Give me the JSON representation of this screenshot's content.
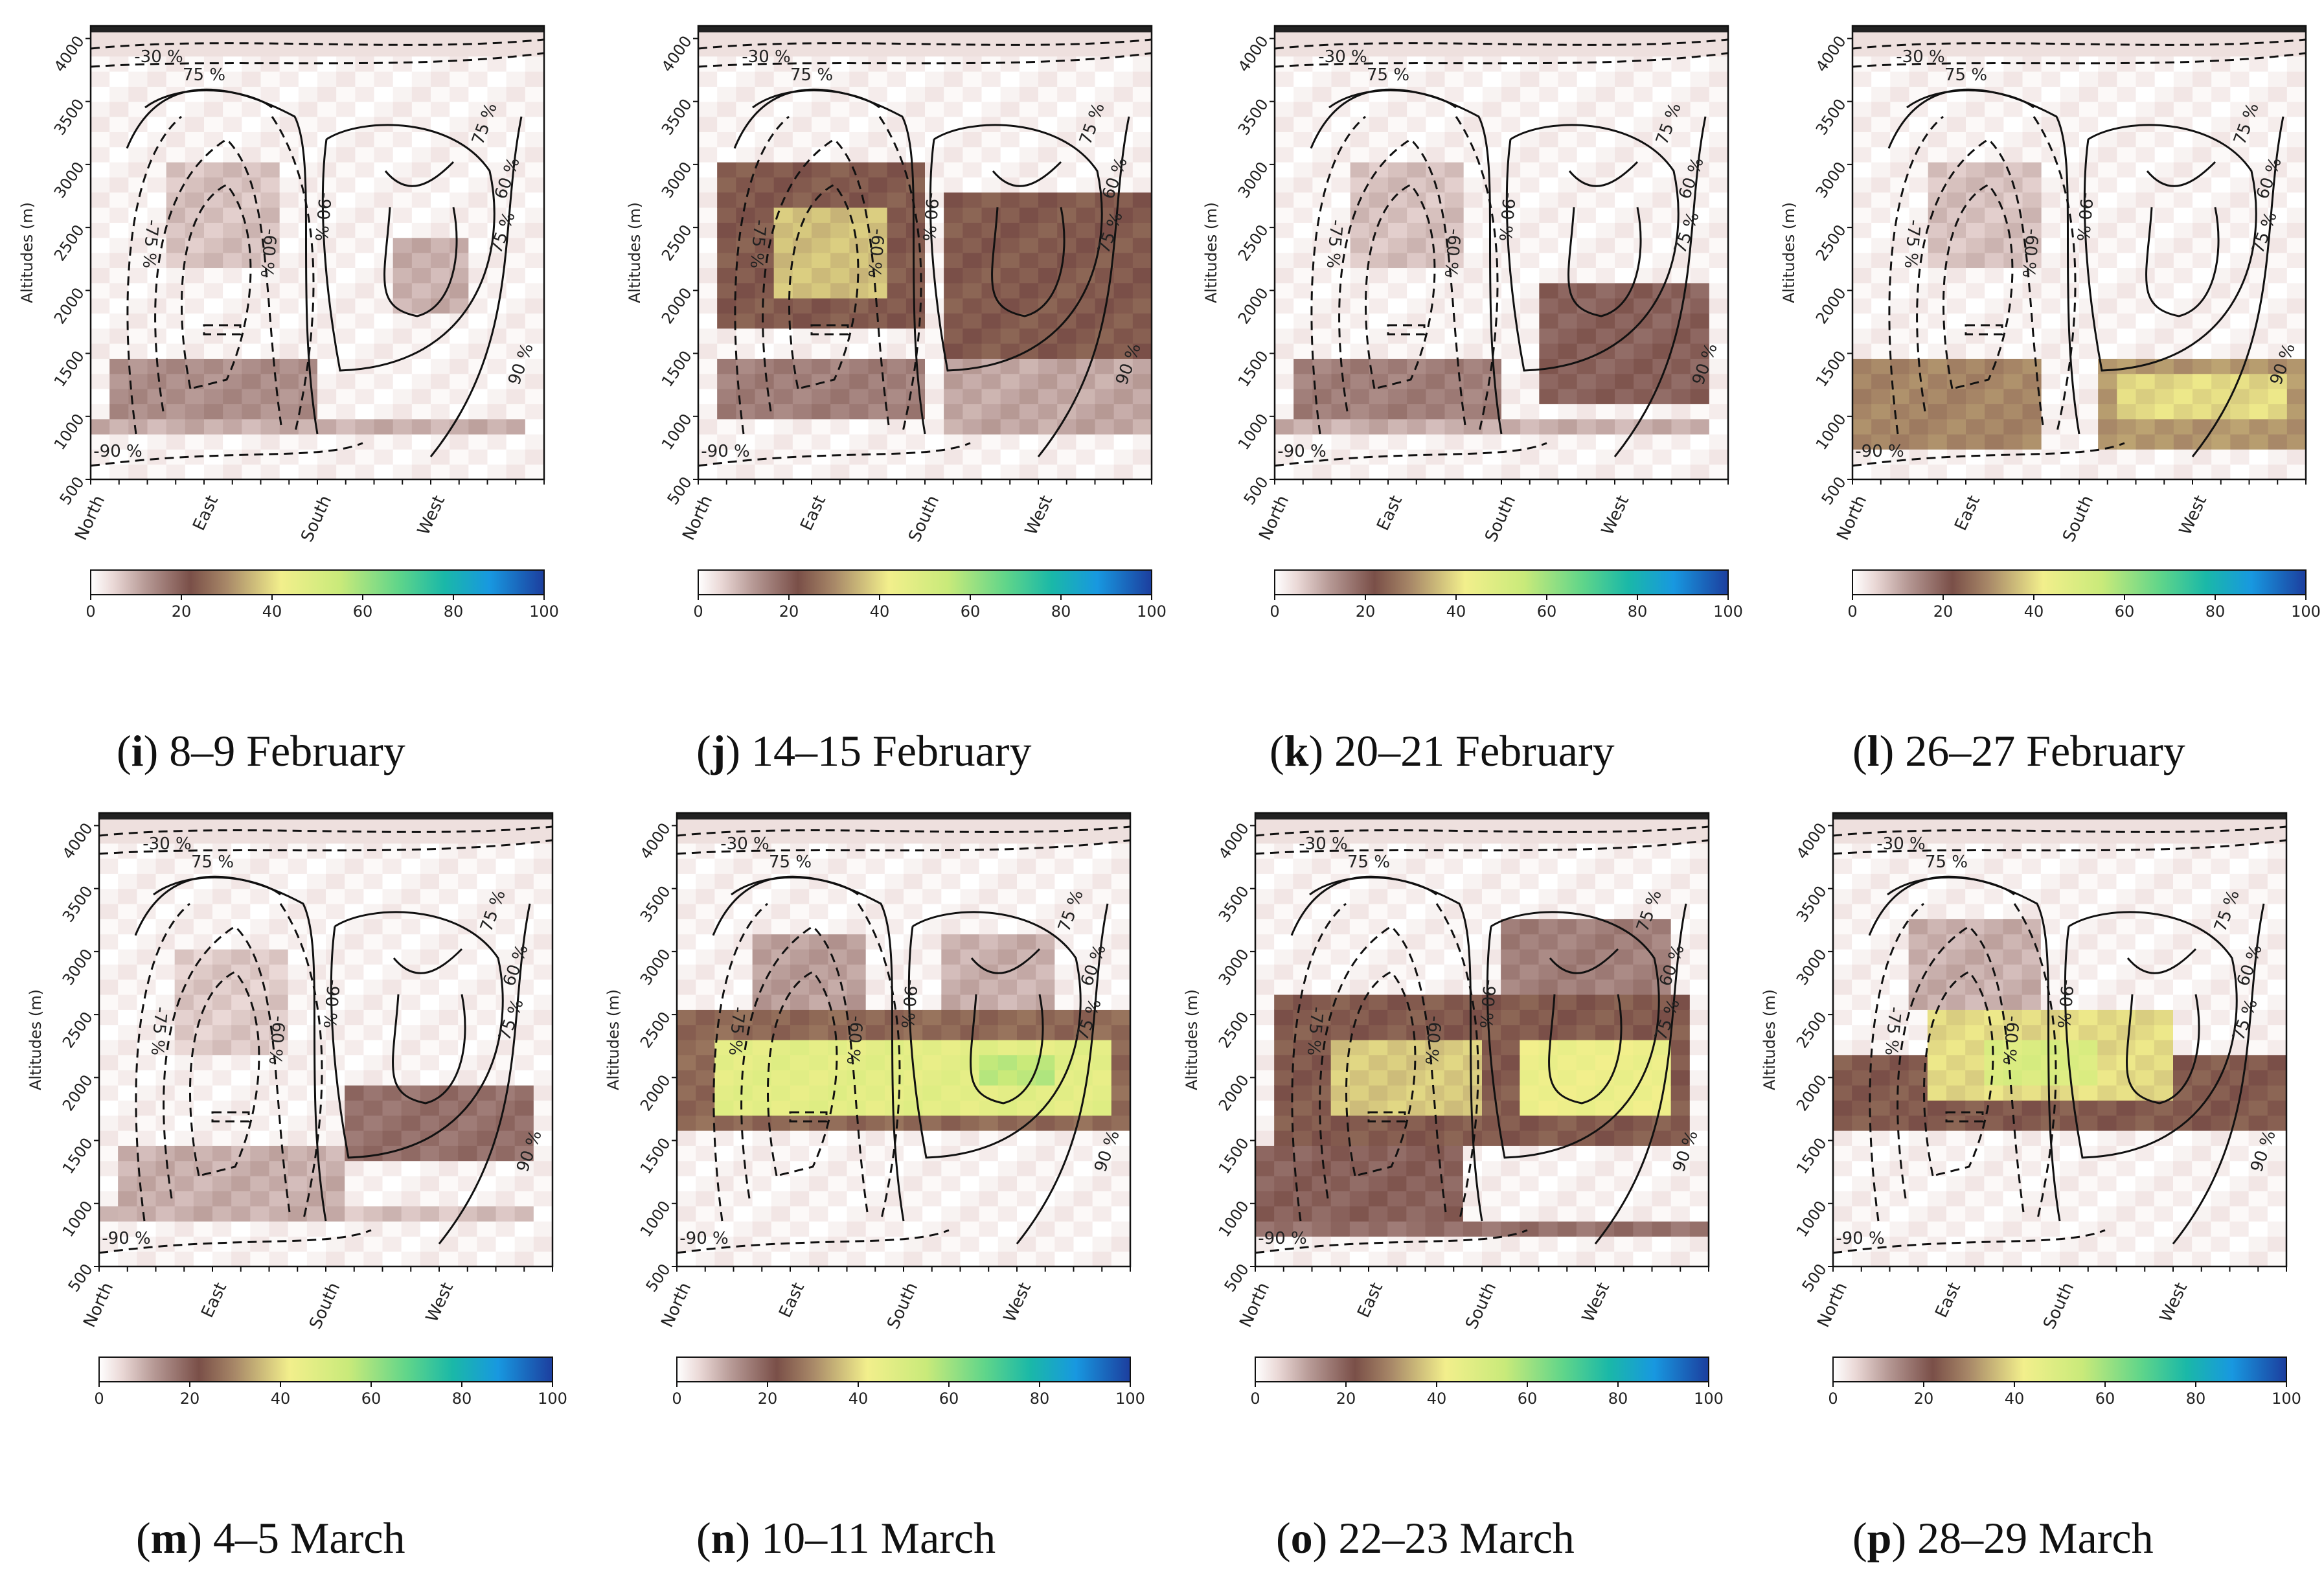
{
  "figure": {
    "colorbar": {
      "ticks": [
        "0",
        "20",
        "40",
        "60",
        "80",
        "100"
      ],
      "min": 0,
      "max": 100,
      "stops": [
        "#ffffff",
        "#ead8d6",
        "#b79a96",
        "#7a4f48",
        "#a88868",
        "#f2ef8c",
        "#c9ea7a",
        "#5fd58a",
        "#1ab8a8",
        "#1898e0",
        "#1c3e9e"
      ]
    },
    "axis": {
      "ylabel": "Altitudes (m)",
      "yticks": [
        "500",
        "1000",
        "1500",
        "2000",
        "2500",
        "3000",
        "3500",
        "4000"
      ],
      "xticks": [
        "North",
        "East",
        "South",
        "West"
      ]
    },
    "contour_labels": [
      "-30 %",
      "75 %",
      "-75 %",
      "-60 %",
      "-90 %",
      "75 %",
      "60 %",
      "75 %",
      "90 %",
      "-90 %"
    ]
  },
  "chart_data": [
    {
      "type": "heatmap",
      "letter": "i",
      "caption": "8–9 February",
      "xlabel": "",
      "ylabel": "Altitudes (m)",
      "ylim": [
        500,
        4100
      ],
      "x_categories": [
        "North",
        "East",
        "South",
        "West"
      ],
      "clim": [
        0,
        100
      ],
      "layers": [
        {
          "alt_range": [
            2200,
            3000
          ],
          "dir_range": [
            0.15,
            0.4
          ],
          "value": 6
        },
        {
          "alt_range": [
            1000,
            1450
          ],
          "dir_range": [
            0.05,
            0.5
          ],
          "value": 12
        },
        {
          "alt_range": [
            850,
            1000
          ],
          "dir_range": [
            0.0,
            0.95
          ],
          "value": 8
        },
        {
          "alt_range": [
            1800,
            2400
          ],
          "dir_range": [
            0.65,
            0.85
          ],
          "value": 8
        }
      ]
    },
    {
      "type": "heatmap",
      "letter": "j",
      "caption": "14–15 February",
      "xlabel": "",
      "ylabel": "Altitudes (m)",
      "ylim": [
        500,
        4100
      ],
      "x_categories": [
        "North",
        "East",
        "South",
        "West"
      ],
      "clim": [
        0,
        100
      ],
      "layers": [
        {
          "alt_range": [
            1700,
            3000
          ],
          "dir_range": [
            0.05,
            0.5
          ],
          "value": 22
        },
        {
          "alt_range": [
            1900,
            2600
          ],
          "dir_range": [
            0.15,
            0.42
          ],
          "value": 35
        },
        {
          "alt_range": [
            1500,
            2800
          ],
          "dir_range": [
            0.55,
            0.98
          ],
          "value": 22
        },
        {
          "alt_range": [
            950,
            1450
          ],
          "dir_range": [
            0.05,
            0.5
          ],
          "value": 14
        },
        {
          "alt_range": [
            900,
            1600
          ],
          "dir_range": [
            0.55,
            1.0
          ],
          "value": 9
        }
      ]
    },
    {
      "type": "heatmap",
      "letter": "k",
      "caption": "20–21 February",
      "xlabel": "",
      "ylabel": "Altitudes (m)",
      "ylim": [
        500,
        4100
      ],
      "x_categories": [
        "North",
        "East",
        "South",
        "West"
      ],
      "clim": [
        0,
        100
      ],
      "layers": [
        {
          "alt_range": [
            2200,
            3000
          ],
          "dir_range": [
            0.15,
            0.4
          ],
          "value": 6
        },
        {
          "alt_range": [
            1000,
            1450
          ],
          "dir_range": [
            0.05,
            0.5
          ],
          "value": 14
        },
        {
          "alt_range": [
            1150,
            2000
          ],
          "dir_range": [
            0.6,
            0.95
          ],
          "value": 18
        },
        {
          "alt_range": [
            850,
            1000
          ],
          "dir_range": [
            0.0,
            0.95
          ],
          "value": 8
        }
      ]
    },
    {
      "type": "heatmap",
      "letter": "l",
      "caption": "26–27 February",
      "xlabel": "",
      "ylabel": "Altitudes (m)",
      "ylim": [
        500,
        4100
      ],
      "x_categories": [
        "North",
        "East",
        "South",
        "West"
      ],
      "clim": [
        0,
        100
      ],
      "layers": [
        {
          "alt_range": [
            800,
            1500
          ],
          "dir_range": [
            0.0,
            0.4
          ],
          "value": 28
        },
        {
          "alt_range": [
            800,
            1500
          ],
          "dir_range": [
            0.55,
            1.0
          ],
          "value": 30
        },
        {
          "alt_range": [
            950,
            1300
          ],
          "dir_range": [
            0.6,
            0.95
          ],
          "value": 38
        },
        {
          "alt_range": [
            2200,
            3000
          ],
          "dir_range": [
            0.15,
            0.4
          ],
          "value": 6
        }
      ]
    },
    {
      "type": "heatmap",
      "letter": "m",
      "caption": "4–5 March",
      "xlabel": "",
      "ylabel": "Altitudes (m)",
      "ylim": [
        500,
        4100
      ],
      "x_categories": [
        "North",
        "East",
        "South",
        "West"
      ],
      "clim": [
        0,
        100
      ],
      "layers": [
        {
          "alt_range": [
            1350,
            1950
          ],
          "dir_range": [
            0.55,
            0.95
          ],
          "value": 16
        },
        {
          "alt_range": [
            900,
            1500
          ],
          "dir_range": [
            0.05,
            0.55
          ],
          "value": 8
        },
        {
          "alt_range": [
            2200,
            3000
          ],
          "dir_range": [
            0.15,
            0.4
          ],
          "value": 5
        },
        {
          "alt_range": [
            850,
            1000
          ],
          "dir_range": [
            0.0,
            0.95
          ],
          "value": 6
        }
      ]
    },
    {
      "type": "heatmap",
      "letter": "n",
      "caption": "10–11 March",
      "xlabel": "",
      "ylabel": "Altitudes (m)",
      "ylim": [
        500,
        4100
      ],
      "x_categories": [
        "North",
        "East",
        "South",
        "West"
      ],
      "clim": [
        0,
        100
      ],
      "layers": [
        {
          "alt_range": [
            1550,
            2500
          ],
          "dir_range": [
            0.0,
            1.0
          ],
          "value": 24
        },
        {
          "alt_range": [
            1750,
            2300
          ],
          "dir_range": [
            0.1,
            0.95
          ],
          "value": 45
        },
        {
          "alt_range": [
            1900,
            2200
          ],
          "dir_range": [
            0.65,
            0.85
          ],
          "value": 55
        },
        {
          "alt_range": [
            2500,
            3100
          ],
          "dir_range": [
            0.15,
            0.4
          ],
          "value": 10
        },
        {
          "alt_range": [
            2500,
            3100
          ],
          "dir_range": [
            0.6,
            0.85
          ],
          "value": 8
        }
      ]
    },
    {
      "type": "heatmap",
      "letter": "o",
      "caption": "22–23 March",
      "xlabel": "",
      "ylabel": "Altitudes (m)",
      "ylim": [
        500,
        4100
      ],
      "x_categories": [
        "North",
        "East",
        "South",
        "West"
      ],
      "clim": [
        0,
        100
      ],
      "layers": [
        {
          "alt_range": [
            1500,
            2600
          ],
          "dir_range": [
            0.05,
            0.95
          ],
          "value": 22
        },
        {
          "alt_range": [
            1750,
            2250
          ],
          "dir_range": [
            0.15,
            0.5
          ],
          "value": 36
        },
        {
          "alt_range": [
            1650,
            2300
          ],
          "dir_range": [
            0.6,
            0.9
          ],
          "value": 42
        },
        {
          "alt_range": [
            850,
            1500
          ],
          "dir_range": [
            0.0,
            0.45
          ],
          "value": 18
        },
        {
          "alt_range": [
            750,
            900
          ],
          "dir_range": [
            0.0,
            1.0
          ],
          "value": 16
        },
        {
          "alt_range": [
            2400,
            3200
          ],
          "dir_range": [
            0.55,
            0.9
          ],
          "value": 14
        }
      ]
    },
    {
      "type": "heatmap",
      "letter": "p",
      "caption": "28–29 March",
      "xlabel": "",
      "ylabel": "Altitudes (m)",
      "ylim": [
        500,
        4100
      ],
      "x_categories": [
        "North",
        "East",
        "South",
        "West"
      ],
      "clim": [
        0,
        100
      ],
      "layers": [
        {
          "alt_range": [
            1550,
            2200
          ],
          "dir_range": [
            0.0,
            1.0
          ],
          "value": 22
        },
        {
          "alt_range": [
            1800,
            2500
          ],
          "dir_range": [
            0.2,
            0.75
          ],
          "value": 38
        },
        {
          "alt_range": [
            1900,
            2300
          ],
          "dir_range": [
            0.35,
            0.6
          ],
          "value": 48
        },
        {
          "alt_range": [
            2500,
            3200
          ],
          "dir_range": [
            0.15,
            0.45
          ],
          "value": 8
        }
      ]
    }
  ]
}
